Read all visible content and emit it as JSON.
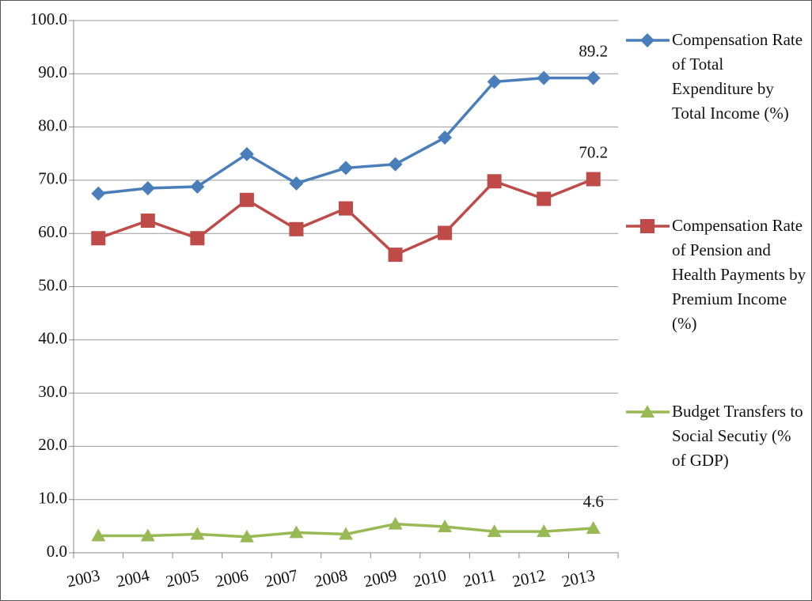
{
  "chart_data": {
    "type": "line",
    "categories": [
      "2003",
      "2004",
      "2005",
      "2006",
      "2007",
      "2008",
      "2009",
      "2010",
      "2011",
      "2012",
      "2013"
    ],
    "series": [
      {
        "name": "Compensation Rate of Total Expenditure by Total Income (%)",
        "color": "#4a7ebb",
        "marker": "diamond",
        "values": [
          67.5,
          68.5,
          68.8,
          74.9,
          69.4,
          72.3,
          73.0,
          78.0,
          88.5,
          89.2,
          89.2
        ]
      },
      {
        "name": "Compensation Rate of Pension and Health Payments by Premium Income (%)",
        "color": "#be4b48",
        "marker": "square",
        "values": [
          59.1,
          62.4,
          59.1,
          66.3,
          60.8,
          64.7,
          56.0,
          60.1,
          69.8,
          66.5,
          70.2
        ]
      },
      {
        "name": "Budget Transfers to Social Secutiy (% of GDP)",
        "color": "#98b954",
        "marker": "triangle",
        "values": [
          3.2,
          3.2,
          3.5,
          3.0,
          3.8,
          3.5,
          5.4,
          4.9,
          4.0,
          4.0,
          4.6
        ]
      }
    ],
    "labels": "last",
    "ylim": [
      0,
      100
    ],
    "yticks": [
      {
        "value": 0,
        "label": "0.0"
      },
      {
        "value": 10,
        "label": "10.0"
      },
      {
        "value": 20,
        "label": "20.0"
      },
      {
        "value": 30,
        "label": "30.0"
      },
      {
        "value": 40,
        "label": "40.0"
      },
      {
        "value": 50,
        "label": "50.0"
      },
      {
        "value": 60,
        "label": "60.0"
      },
      {
        "value": 70,
        "label": "70.0"
      },
      {
        "value": 80,
        "label": "80.0"
      },
      {
        "value": 90,
        "label": "90.0"
      },
      {
        "value": 100,
        "label": "100.0"
      }
    ],
    "grid": true,
    "legend": "right"
  }
}
